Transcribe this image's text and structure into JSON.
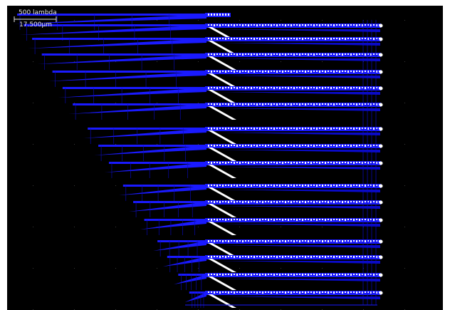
{
  "scale_bar": {
    "label_top": "500 lambda",
    "label_bottom": "17.500µm"
  },
  "colors": {
    "background": "#000000",
    "metal": "#1a1aff",
    "metal_dark": "#0a0ac8",
    "contact": "#ffffff",
    "grid_dot": "#3a3a3a"
  },
  "layout": {
    "view": "layout-editor-canvas",
    "row_count": 16
  }
}
